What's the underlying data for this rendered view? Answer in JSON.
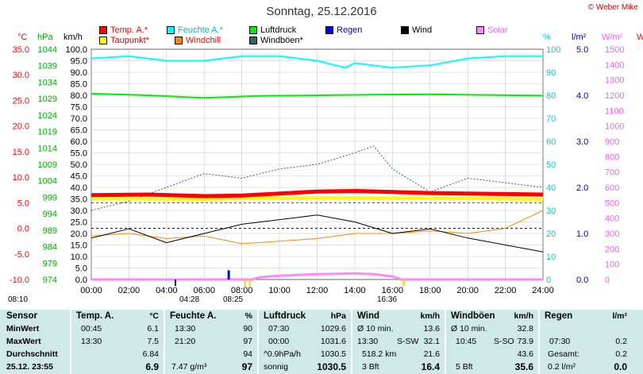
{
  "header": {
    "title": "Sonntag, 25.12.2016",
    "copyright": "© Weber Mike"
  },
  "legend": [
    {
      "label": "Temp. A.*",
      "color": "#ff0000"
    },
    {
      "label": "Feuchte A.*",
      "color": "#00ffff"
    },
    {
      "label": "Luftdruck",
      "color": "#00ee00"
    },
    {
      "label": "Regen",
      "color": "#0000ff"
    },
    {
      "label": "Wind",
      "color": "#000000"
    },
    {
      "label": "Solar",
      "color": "#ff88ff"
    },
    {
      "label": "Taupunkt*",
      "color": "#ffff00"
    },
    {
      "label": "Windchill",
      "color": "#ff8800"
    },
    {
      "label": "Windböen*",
      "color": "#336666"
    }
  ],
  "axes": {
    "units": {
      "temp": "°C",
      "hpa": "hPa",
      "kmh": "km/h",
      "pct": "%",
      "rain": "l/m²",
      "solar": "W/m²",
      "extra": "W"
    },
    "temp_ticks": [
      "35.0",
      "30.0",
      "25.0",
      "20.0",
      "15.0",
      "10.0",
      "5.0",
      "0.0",
      "-5.0",
      "-10.0"
    ],
    "hpa_ticks": [
      "1044",
      "1039",
      "1034",
      "1029",
      "1024",
      "1019",
      "1014",
      "1009",
      "1004",
      "999",
      "994",
      "989",
      "984",
      "979",
      "974"
    ],
    "kmh_ticks": [
      "100.0",
      "95.0",
      "90.0",
      "85.0",
      "80.0",
      "75.0",
      "70.0",
      "65.0",
      "60.0",
      "55.0",
      "50.0",
      "45.0",
      "40.0",
      "35.0",
      "30.0",
      "25.0",
      "20.0",
      "15.0",
      "10.0",
      "5.0",
      "0.0"
    ],
    "pct_ticks": [
      "100",
      "90",
      "80",
      "70",
      "60",
      "50",
      "40",
      "30",
      "20",
      "10",
      "0"
    ],
    "rain_ticks": [
      "5.0",
      "4.0",
      "3.0",
      "2.0",
      "1.0",
      "0.0"
    ],
    "solar_ticks": [
      "1500",
      "1400",
      "1300",
      "1200",
      "1100",
      "1000",
      "900",
      "800",
      "700",
      "600",
      "500",
      "400",
      "300",
      "200",
      "100",
      "0"
    ],
    "x_ticks": [
      "00:00",
      "02:00",
      "04:00",
      "06:00",
      "08:00",
      "10:00",
      "12:00",
      "14:00",
      "16:00",
      "18:00",
      "20:00",
      "22:00",
      "24:00"
    ]
  },
  "events": {
    "sunrise": "08:10",
    "moonrise": "04:28",
    "sunrise2": "08:25",
    "sunset": "16:36",
    "label": "I"
  },
  "chart_data": {
    "type": "line",
    "title": "Sonntag, 25.12.2016",
    "x_unit": "hours",
    "xlim": [
      0,
      24
    ],
    "series": [
      {
        "name": "Temp. A.*",
        "axis": "°C",
        "color": "#ff0000",
        "x": [
          0,
          3,
          6,
          8,
          10,
          12,
          14,
          16,
          18,
          20,
          22,
          24
        ],
        "y": [
          6.5,
          6.6,
          6.3,
          6.4,
          6.8,
          7.2,
          7.3,
          7.1,
          6.9,
          6.8,
          6.7,
          6.6
        ]
      },
      {
        "name": "Taupunkt*",
        "axis": "°C",
        "color": "#ffff00",
        "x": [
          0,
          6,
          12,
          18,
          24
        ],
        "y": [
          5.8,
          5.7,
          6.0,
          5.9,
          5.7
        ]
      },
      {
        "name": "Feuchte A.*",
        "axis": "%",
        "color": "#00ffff",
        "x": [
          0,
          2,
          4,
          6,
          8,
          10,
          12,
          13.5,
          14,
          16,
          18,
          20,
          22,
          24
        ],
        "y": [
          96,
          97,
          95,
          95,
          97,
          97,
          95,
          92,
          94,
          92,
          93,
          96,
          97,
          97
        ]
      },
      {
        "name": "Luftdruck",
        "axis": "hPa",
        "color": "#00ee00",
        "x": [
          0,
          3,
          6,
          9,
          12,
          15,
          18,
          21,
          24
        ],
        "y": [
          1030.5,
          1030.0,
          1029.2,
          1029.8,
          1030.0,
          1030.2,
          1030.3,
          1030.1,
          1029.9
        ]
      },
      {
        "name": "Wind",
        "axis": "km/h",
        "color": "#000000",
        "x": [
          0,
          2,
          4,
          6,
          8,
          10,
          12,
          14,
          16,
          18,
          20,
          22,
          24
        ],
        "y": [
          18,
          22,
          16,
          20,
          24,
          26,
          28,
          25,
          20,
          22,
          18,
          15,
          12
        ]
      },
      {
        "name": "Windchill",
        "axis": "°C",
        "color": "#ff8800",
        "x": [
          0,
          2,
          4,
          6,
          8,
          10,
          12,
          14,
          16,
          18,
          20,
          22,
          24
        ],
        "y": [
          -1.5,
          -1.0,
          -2.0,
          -1.5,
          -3.0,
          -2.5,
          -2.0,
          -1.0,
          -1.0,
          -0.5,
          -1.0,
          0.0,
          3.5
        ]
      },
      {
        "name": "Windböen*",
        "axis": "km/h",
        "color": "#336666",
        "x": [
          0,
          2,
          4,
          6,
          8,
          10,
          12,
          14,
          15,
          16,
          18,
          20,
          22,
          24
        ],
        "y": [
          30,
          34,
          40,
          46,
          44,
          48,
          50,
          55,
          58,
          48,
          38,
          44,
          42,
          40
        ]
      },
      {
        "name": "Solar",
        "axis": "W/m²",
        "color": "#ff88ff",
        "x": [
          0,
          8.5,
          9,
          10,
          12,
          14,
          15,
          16,
          16.5,
          24
        ],
        "y": [
          0,
          0,
          15,
          25,
          35,
          40,
          35,
          20,
          0,
          0
        ]
      },
      {
        "name": "Regen",
        "axis": "l/m²",
        "color": "#0000ff",
        "x": [
          7.3,
          7.3
        ],
        "y": [
          0,
          0.2
        ]
      }
    ],
    "reference_lines": [
      {
        "axis": "°C",
        "value": 0,
        "color": "#0000ff",
        "style": "dashed"
      },
      {
        "axis": "°C",
        "value": 5,
        "color": "#ff0000",
        "style": "dashed"
      }
    ]
  },
  "table": {
    "rows": [
      "Sensor",
      "MinWert",
      "MaxWert",
      "Durchschnitt",
      "25.12. 23:55"
    ],
    "temp": {
      "head": "Temp. A.",
      "unit": "°C",
      "min_t": "00:45",
      "min": "6.1",
      "max_t": "13:30",
      "max": "7.5",
      "avg": "6.84",
      "cur": "6.9"
    },
    "hum": {
      "head": "Feuchte A.",
      "unit": "%",
      "min_t": "13:30",
      "min": "90",
      "max_t": "21:20",
      "max": "97",
      "avg": "94",
      "cur_extra": "7.47 g/m³",
      "cur": "97"
    },
    "press": {
      "head": "Luftdruck",
      "unit": "hPa",
      "min_t": "07:30",
      "min": "1029.6",
      "max_t": "00:00",
      "max": "1031.6",
      "avg_l": "^0.9hPa/h",
      "avg": "1030.5",
      "cur_l": "sonnig",
      "cur": "1030.5"
    },
    "wind": {
      "head": "Wind",
      "unit": "km/h",
      "min_l": "Ø 10 min.",
      "min": "13.6",
      "max_l": "13:30",
      "max_d": "S-SW",
      "max": "32.1",
      "avg_l": "518.2 km",
      "avg": "21.6",
      "cur_l": "3 Bft",
      "cur": "16.4"
    },
    "gust": {
      "head": "Windböen",
      "unit": "km/h",
      "min_l": "Ø 10 min.",
      "min": "32.8",
      "max_l": "10:45",
      "max_d": "S-SO",
      "max": "73.9",
      "avg": "43.6",
      "cur_l": "5 Bft",
      "cur": "35.6"
    },
    "rain": {
      "head": "Regen",
      "unit": "l/m²",
      "max_l": "07:30",
      "max": "0.2",
      "avg_l": "Gesamt:",
      "avg": "0.2",
      "cur_l": "0.2 l/m²",
      "cur": "0.0"
    }
  }
}
